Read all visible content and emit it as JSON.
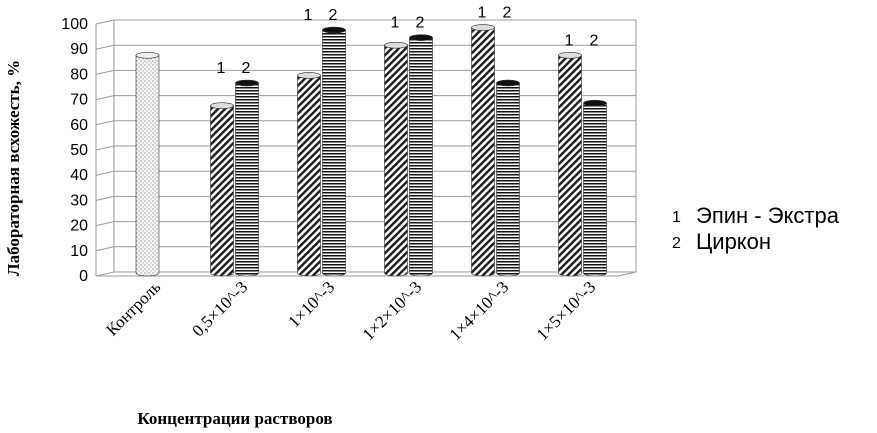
{
  "chart_data": {
    "type": "bar",
    "ylabel": "Лабораторная всхожесть, %",
    "xlabel": "Концентрации растворов",
    "ylim": [
      0,
      100
    ],
    "yticks": [
      0,
      10,
      20,
      30,
      40,
      50,
      60,
      70,
      80,
      90,
      100
    ],
    "grid": true,
    "legend_position": "right",
    "categories": [
      "Контроль",
      "0,5×10^-3",
      "1×10^-3",
      "1×2×10^-3",
      "1×4×10^-3",
      "1×5×10^-3"
    ],
    "control": {
      "category": "Контроль",
      "value": 86
    },
    "series": [
      {
        "name": "Эпин - Экстра",
        "index_label": "1",
        "values": [
          null,
          66,
          78,
          90,
          97,
          86
        ]
      },
      {
        "name": "Циркон",
        "index_label": "2",
        "values": [
          null,
          75,
          96,
          93,
          75,
          67
        ]
      }
    ]
  }
}
